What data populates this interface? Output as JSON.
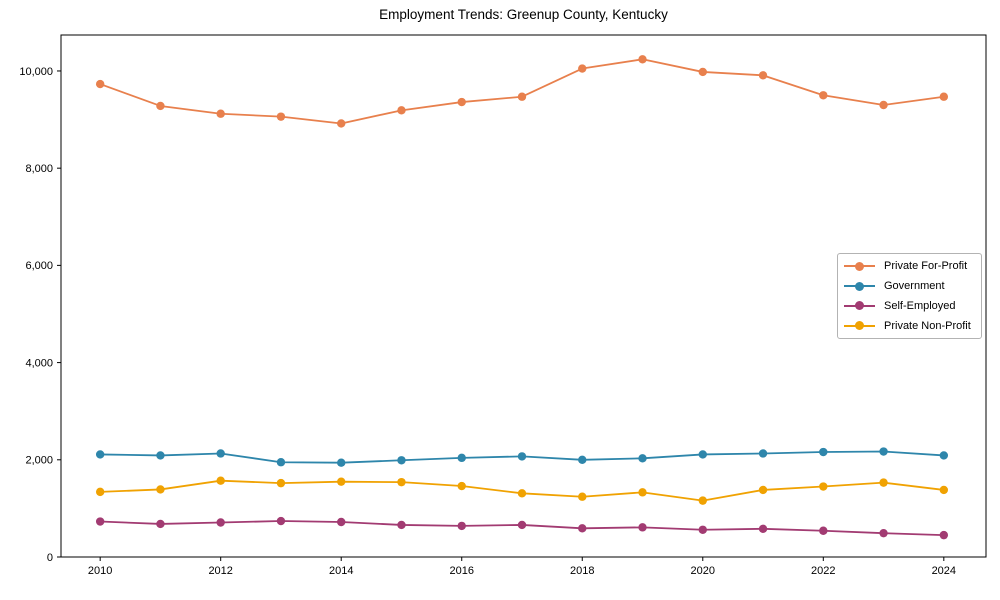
{
  "chart_data": {
    "type": "line",
    "title": "Employment Trends: Greenup County, Kentucky",
    "xlabel": "",
    "ylabel": "",
    "x": [
      2010,
      2011,
      2012,
      2013,
      2014,
      2015,
      2016,
      2017,
      2018,
      2019,
      2020,
      2021,
      2022,
      2023,
      2024
    ],
    "series": [
      {
        "name": "Private For-Profit",
        "color": "#E8804D",
        "values": [
          9730,
          9280,
          9120,
          9060,
          8920,
          9190,
          9360,
          9470,
          10050,
          10240,
          9980,
          9910,
          9500,
          9300,
          9470
        ]
      },
      {
        "name": "Government",
        "color": "#2E86AB",
        "values": [
          2110,
          2090,
          2130,
          1950,
          1940,
          1990,
          2040,
          2070,
          2000,
          2030,
          2110,
          2130,
          2160,
          2170,
          2090
        ]
      },
      {
        "name": "Self-Employed",
        "color": "#A23B72",
        "values": [
          730,
          680,
          710,
          740,
          720,
          660,
          640,
          660,
          590,
          610,
          560,
          580,
          540,
          490,
          450
        ]
      },
      {
        "name": "Private Non-Profit",
        "color": "#F0A202",
        "values": [
          1340,
          1390,
          1570,
          1520,
          1550,
          1540,
          1460,
          1310,
          1240,
          1330,
          1160,
          1380,
          1450,
          1530,
          1380
        ]
      }
    ],
    "xlim": [
      2009.35,
      2024.7
    ],
    "ylim": [
      0,
      10740
    ],
    "x_ticks": [
      2010,
      2012,
      2014,
      2016,
      2018,
      2020,
      2022,
      2024
    ],
    "x_tick_labels": [
      "2010",
      "2012",
      "2014",
      "2016",
      "2018",
      "2020",
      "2022",
      "2024"
    ],
    "y_ticks": [
      0,
      2000,
      4000,
      6000,
      8000,
      10000
    ],
    "y_tick_labels": [
      "0",
      "2,000",
      "4,000",
      "6,000",
      "8,000",
      "10,000"
    ],
    "grid": false,
    "legend_position": "center-right",
    "marker": "circle",
    "frame_color": "#000000",
    "background_color": "#ffffff"
  }
}
